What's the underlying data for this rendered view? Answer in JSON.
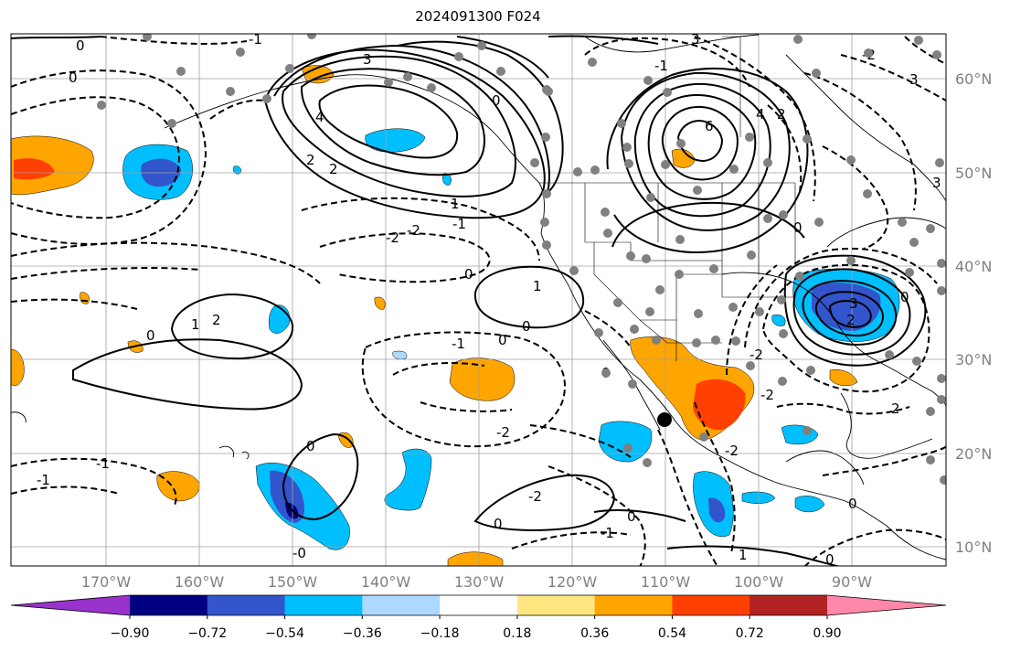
{
  "title": "2024091300 F024",
  "latitude_labels": [
    "60°N",
    "50°N",
    "40°N",
    "30°N",
    "20°N",
    "10°N"
  ],
  "longitude_labels": [
    "170°W",
    "160°W",
    "150°W",
    "140°W",
    "130°W",
    "120°W",
    "110°W",
    "100°W",
    "90°W"
  ],
  "colorbar": {
    "ticks": [
      "−0.90",
      "−0.72",
      "−0.54",
      "−0.36",
      "−0.18",
      "0.18",
      "0.36",
      "0.54",
      "0.72",
      "0.90"
    ],
    "colors": [
      "#9933cc",
      "#000080",
      "#3355cc",
      "#00bfff",
      "#add8ff",
      "#ffffff",
      "#ffe680",
      "#ffa500",
      "#ff4000",
      "#b22222",
      "#ff88aa"
    ]
  },
  "contour_labels": [
    "0",
    "1",
    "3",
    "4",
    "2",
    "-2",
    "-1",
    "6",
    "0",
    "-2",
    "1",
    "2",
    "0",
    "-1",
    "-2",
    "-5",
    "-6",
    "-1",
    "0",
    "1",
    "-0",
    "-2",
    "2",
    "-1",
    "0",
    "3",
    "-3",
    "-2",
    "0",
    "1",
    "0",
    "-1",
    "2",
    "3",
    "-2",
    "-1"
  ],
  "marker": "storm-center-marker"
}
